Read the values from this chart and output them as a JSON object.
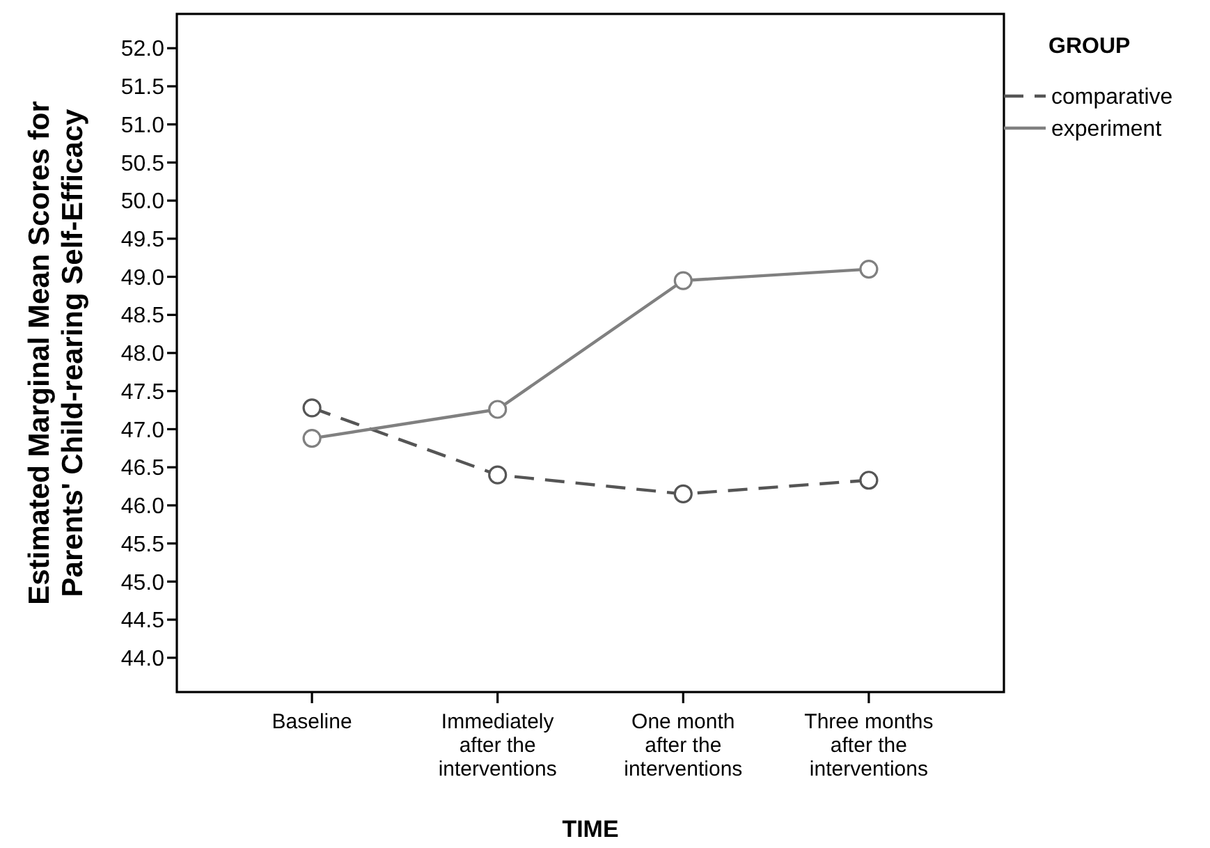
{
  "chart_data": {
    "type": "line",
    "xlabel": "TIME",
    "ylabel": "Estimated Marginal Mean Scores for\nParents' Child-rearing Self-Efficacy",
    "legend_title": "GROUP",
    "categories": [
      "Baseline",
      "Immediately\nafter the\ninterventions",
      "One month\nafter the\ninterventions",
      "Three months\nafter the\ninterventions"
    ],
    "series": [
      {
        "name": "comparative",
        "color": "#555555",
        "line_style": "dashed",
        "values": [
          47.28,
          46.4,
          46.15,
          46.33
        ]
      },
      {
        "name": "experiment",
        "color": "#808080",
        "line_style": "solid",
        "values": [
          46.88,
          47.26,
          48.95,
          49.1
        ]
      }
    ],
    "ylim": [
      43.55,
      52.45
    ],
    "yticks": [
      {
        "value": 44,
        "label": "44.0"
      },
      {
        "value": 44.5,
        "label": "44.5"
      },
      {
        "value": 45,
        "label": "45.0"
      },
      {
        "value": 45.5,
        "label": "45.5"
      },
      {
        "value": 46,
        "label": "46.0"
      },
      {
        "value": 46.5,
        "label": "46.5"
      },
      {
        "value": 47,
        "label": "47.0"
      },
      {
        "value": 47.5,
        "label": "47.5"
      },
      {
        "value": 48,
        "label": "48.0"
      },
      {
        "value": 48.5,
        "label": "48.5"
      },
      {
        "value": 49,
        "label": "49.0"
      },
      {
        "value": 49.5,
        "label": "49.5"
      },
      {
        "value": 50,
        "label": "50.0"
      },
      {
        "value": 50.5,
        "label": "50.5"
      },
      {
        "value": 51,
        "label": "51.0"
      },
      {
        "value": 51.5,
        "label": "51.5"
      },
      {
        "value": 52,
        "label": "52.0"
      }
    ],
    "marker": "circle",
    "grid": false,
    "legend": "right"
  }
}
